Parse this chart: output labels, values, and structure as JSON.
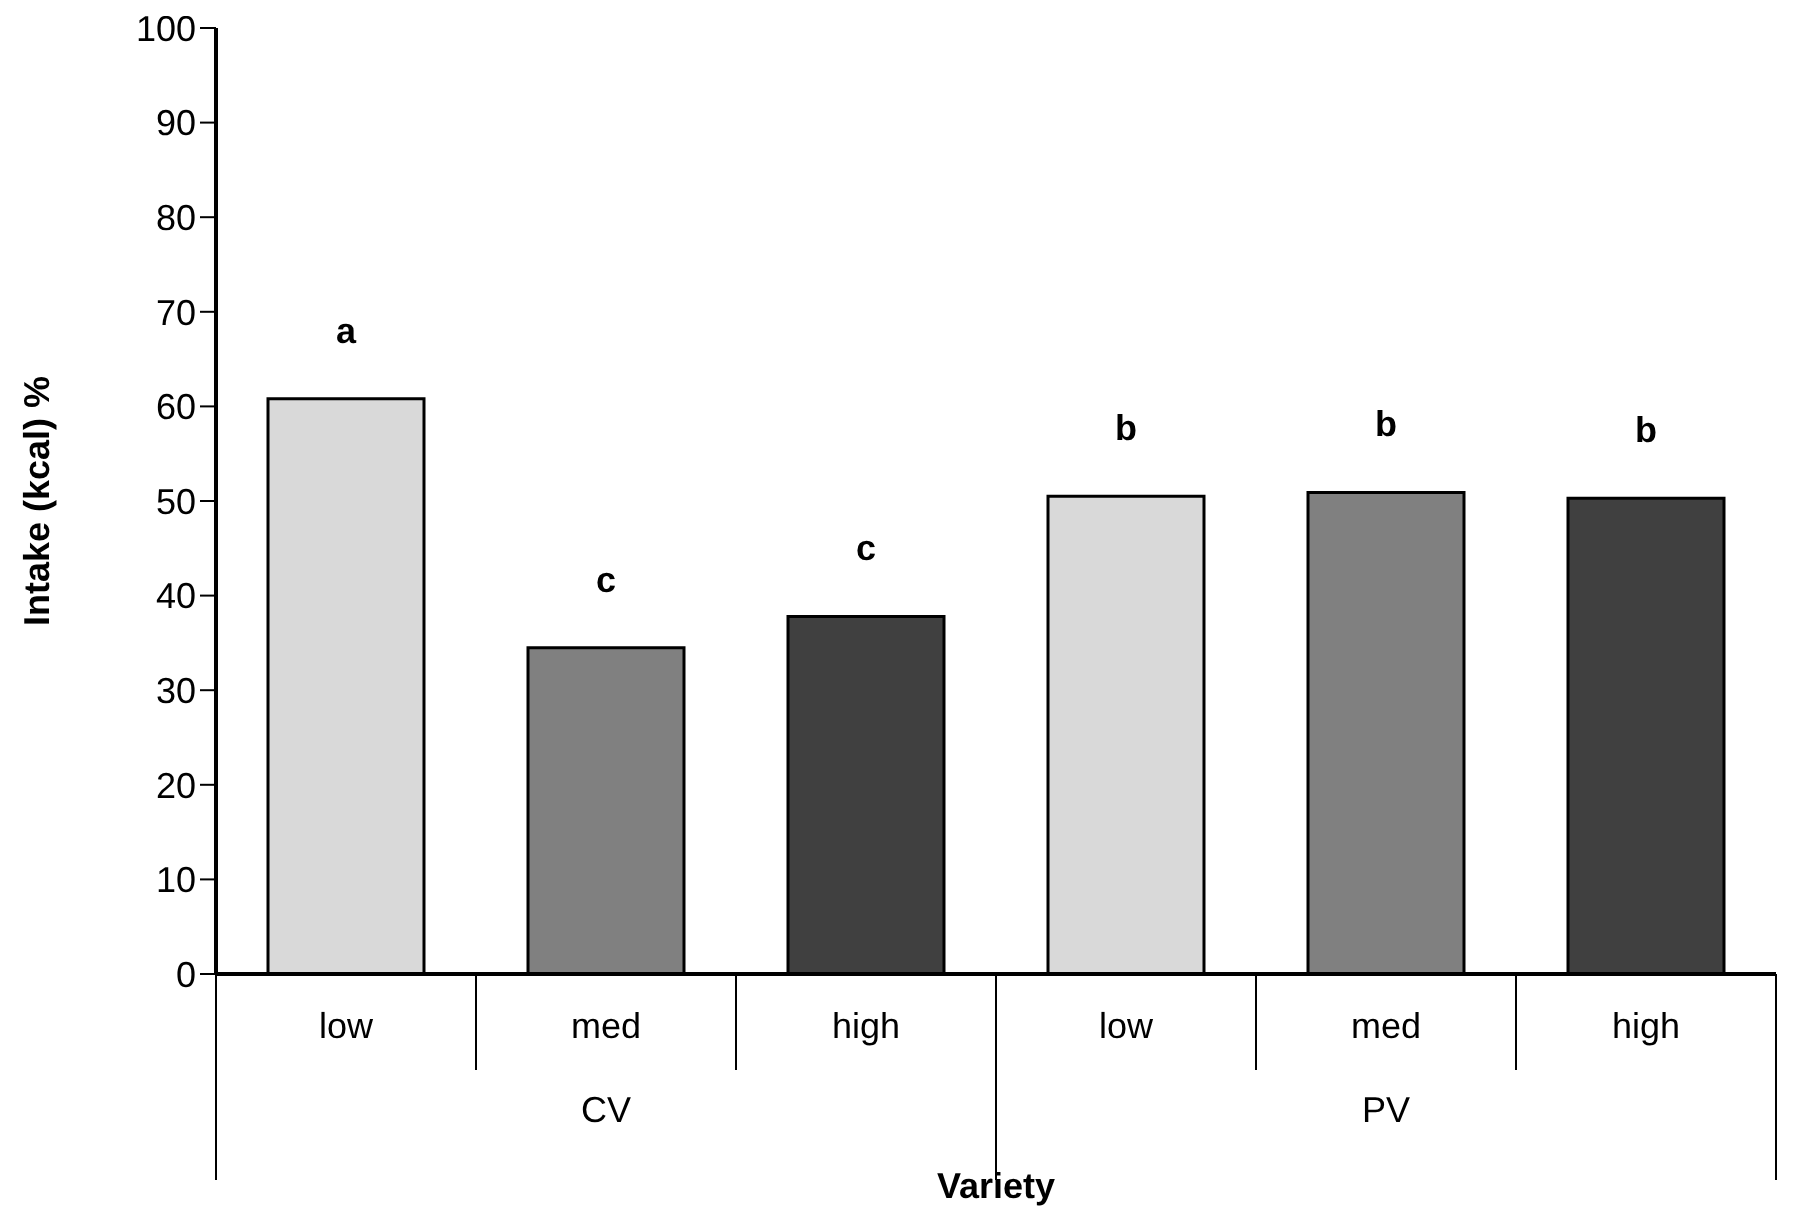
{
  "chart_data": {
    "type": "bar",
    "xlabel": "Variety",
    "ylabel": "Intake (kcal) %",
    "categories": [
      "low",
      "med",
      "high",
      "low",
      "med",
      "high"
    ],
    "values": [
      60.8,
      34.5,
      37.8,
      50.5,
      50.9,
      50.3
    ],
    "colors": [
      "#d9d9d9",
      "#808080",
      "#404040",
      "#d9d9d9",
      "#808080",
      "#404040"
    ],
    "value_labels": [
      "a",
      "c",
      "c",
      "b",
      "b",
      "b"
    ],
    "annotations": [
      "CV",
      "PV"
    ],
    "ylim": [
      0,
      100
    ],
    "yticks": [
      0,
      10,
      20,
      30,
      40,
      50,
      60,
      70,
      80,
      90,
      100
    ],
    "grid": false,
    "legend": false
  }
}
